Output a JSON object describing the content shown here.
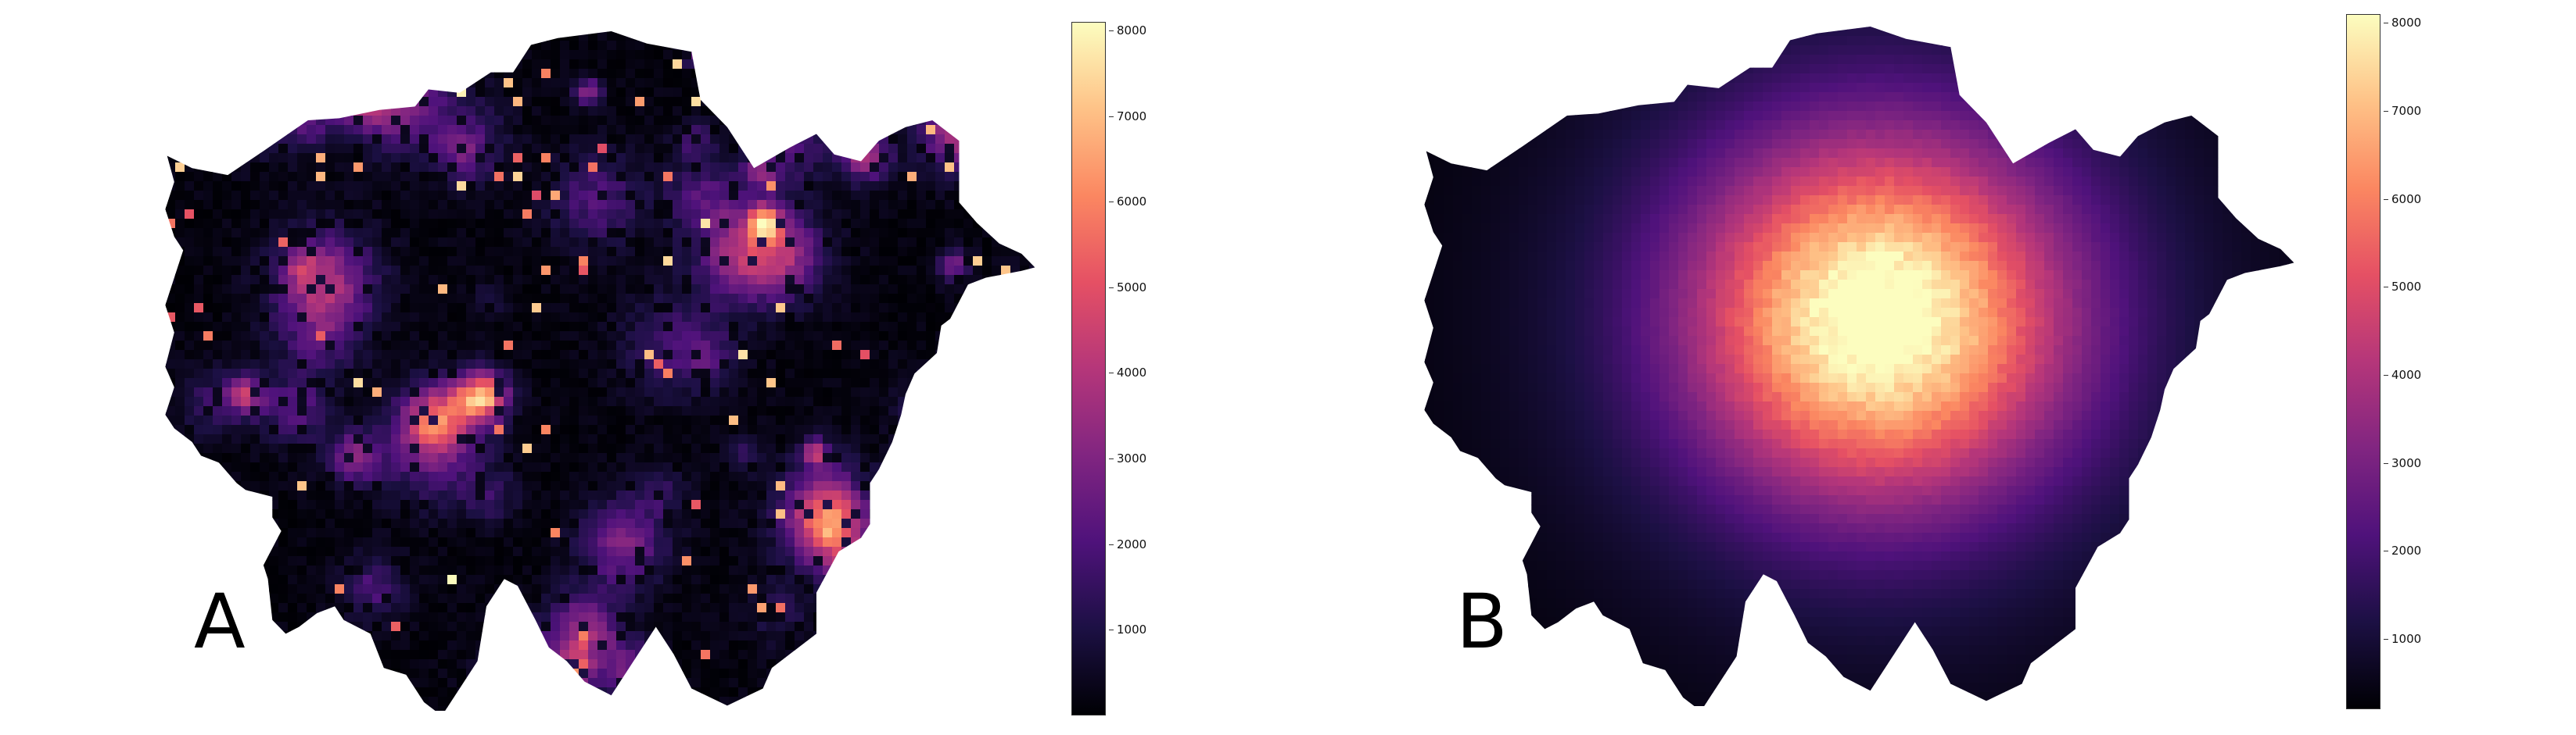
{
  "figure": {
    "colormap": "magma",
    "color_stops": [
      "#000004",
      "#1c1044",
      "#4f127b",
      "#812581",
      "#b5367a",
      "#e55064",
      "#fb8761",
      "#fec287",
      "#fcfdbf"
    ]
  },
  "panels": [
    {
      "letter": "A",
      "field": "dispersed-hotspots",
      "colorbar": {
        "min": 0,
        "max": 8100,
        "ticks": [
          "1000",
          "2000",
          "3000",
          "4000",
          "5000",
          "6000",
          "7000",
          "8000"
        ]
      }
    },
    {
      "letter": "B",
      "field": "central-peak",
      "colorbar": {
        "min": 200,
        "max": 8100,
        "ticks": [
          "1000",
          "2000",
          "3000",
          "4000",
          "5000",
          "6000",
          "7000",
          "8000"
        ]
      }
    }
  ]
}
